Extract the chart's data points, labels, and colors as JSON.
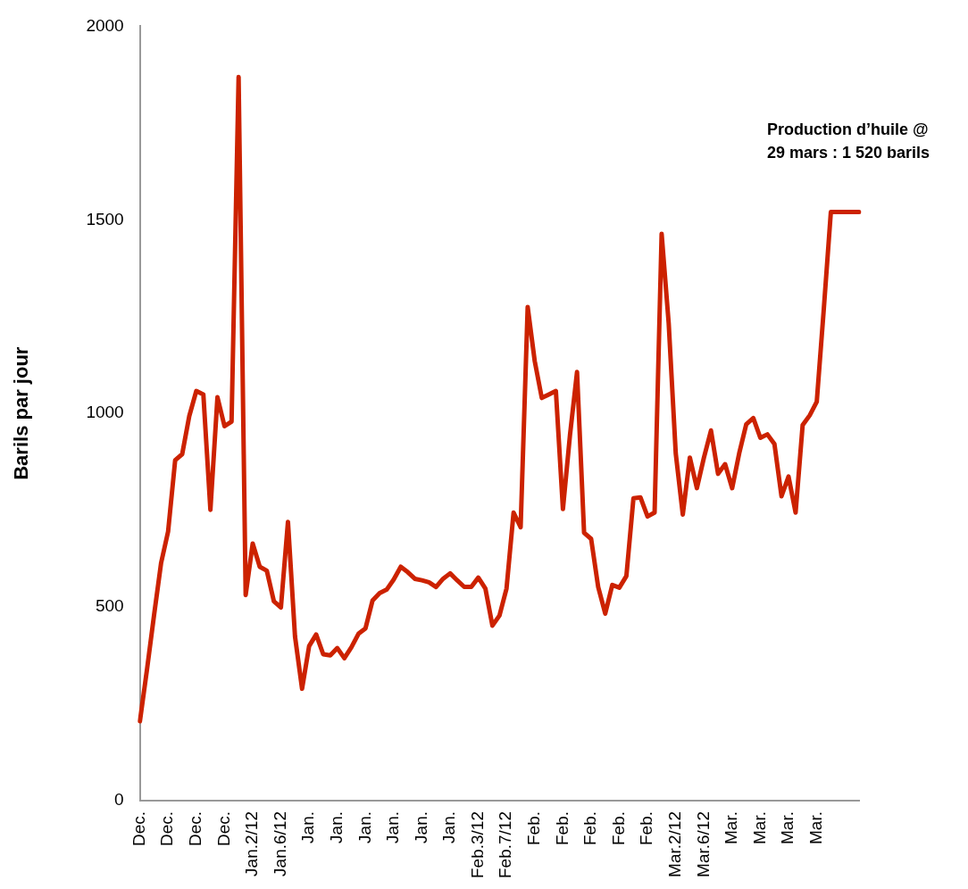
{
  "chart_data": {
    "type": "line",
    "ylabel": "Barils par jour",
    "color": "#cc2200",
    "grid": false,
    "legend": false,
    "marker": "none",
    "line_style": "solid",
    "categories": [
      "Dec.",
      null,
      null,
      null,
      "Dec.",
      null,
      null,
      null,
      "Dec.",
      null,
      null,
      null,
      "Dec.",
      null,
      null,
      null,
      "Jan.2/12",
      null,
      null,
      null,
      "Jan.6/12",
      null,
      null,
      null,
      "Jan.",
      null,
      null,
      null,
      "Jan.",
      null,
      null,
      null,
      "Jan.",
      null,
      null,
      null,
      "Jan.",
      null,
      null,
      null,
      "Jan.",
      null,
      null,
      null,
      "Jan.",
      null,
      null,
      null,
      "Feb.3/12",
      null,
      null,
      null,
      "Feb.7/12",
      null,
      null,
      null,
      "Feb.",
      null,
      null,
      null,
      "Feb.",
      null,
      null,
      null,
      "Feb.",
      null,
      null,
      null,
      "Feb.",
      null,
      null,
      null,
      "Feb.",
      null,
      null,
      null,
      "Mar.2/12",
      null,
      null,
      null,
      "Mar.6/12",
      null,
      null,
      null,
      "Mar.",
      null,
      null,
      null,
      "Mar.",
      null,
      null,
      null,
      "Mar.",
      null,
      null,
      null,
      "Mar.",
      null,
      null,
      null,
      null,
      null,
      null
    ],
    "values": [
      205,
      338,
      478,
      613,
      695,
      879,
      895,
      993,
      1058,
      1049,
      751,
      1042,
      967,
      979,
      1869,
      531,
      664,
      604,
      594,
      515,
      499,
      720,
      424,
      289,
      399,
      429,
      378,
      375,
      394,
      368,
      396,
      431,
      445,
      517,
      536,
      545,
      571,
      604,
      590,
      573,
      569,
      564,
      552,
      573,
      587,
      569,
      552,
      552,
      576,
      548,
      452,
      478,
      548,
      744,
      706,
      1275,
      1135,
      1040,
      1049,
      1058,
      753,
      944,
      1107,
      692,
      676,
      552,
      483,
      557,
      550,
      580,
      781,
      783,
      734,
      744,
      1464,
      1233,
      897,
      739,
      886,
      807,
      886,
      956,
      844,
      869,
      807,
      897,
      972,
      988,
      937,
      946,
      921,
      786,
      837,
      744,
      970,
      995,
      1030,
      1270,
      1520,
      1520,
      1520,
      1520,
      1520
    ],
    "ylim": [
      0,
      2000
    ],
    "yticks": [
      0,
      500,
      1000,
      1500,
      2000
    ],
    "annotations": [
      "Production d’huile @\n29 mars : 1 520 barils"
    ]
  }
}
